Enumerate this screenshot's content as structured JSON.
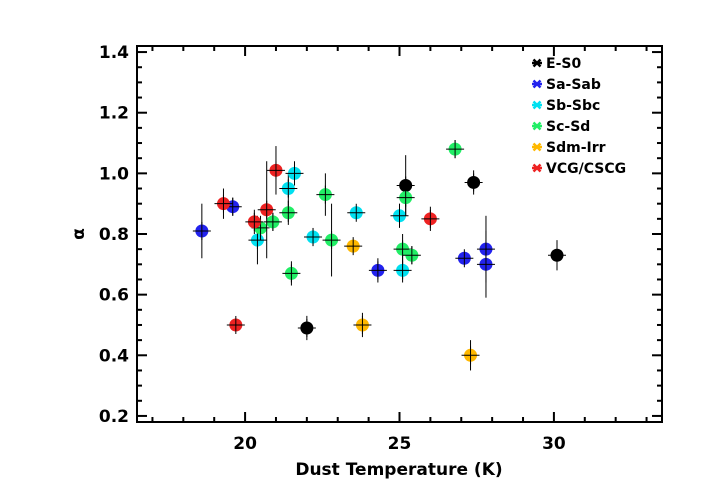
{
  "chart_data": {
    "type": "scatter",
    "title": "",
    "xlabel": "Dust Temperature (K)",
    "ylabel": "α",
    "xlim": [
      16.5,
      33.5
    ],
    "ylim": [
      0.18,
      1.42
    ],
    "xticks": [
      20,
      25,
      30
    ],
    "yticks": [
      0.2,
      0.4,
      0.6,
      0.8,
      1.0,
      1.2,
      1.4
    ],
    "ytick_labels": [
      "0.2",
      "0.4",
      "0.6",
      "0.8",
      "1.0",
      "1.2",
      "1.4"
    ],
    "grid": false,
    "legend_position": "top-right",
    "series": [
      {
        "name": "E-S0",
        "color": "#000000",
        "points": [
          {
            "x": 22.0,
            "y": 0.49,
            "yerr": 0.04
          },
          {
            "x": 25.2,
            "y": 0.96,
            "yerr": 0.1
          },
          {
            "x": 27.4,
            "y": 0.97,
            "yerr": 0.04
          },
          {
            "x": 30.1,
            "y": 0.73,
            "yerr": 0.05
          }
        ]
      },
      {
        "name": "Sa-Sab",
        "color": "#2222ee",
        "points": [
          {
            "x": 18.6,
            "y": 0.81,
            "yerr": 0.09
          },
          {
            "x": 19.6,
            "y": 0.89,
            "yerr": 0.03
          },
          {
            "x": 24.3,
            "y": 0.68,
            "yerr": 0.04
          },
          {
            "x": 27.1,
            "y": 0.72,
            "yerr": 0.02
          },
          {
            "x": 27.8,
            "y": 0.75,
            "yerr": 0.11
          },
          {
            "x": 27.8,
            "y": 0.7,
            "yerr": 0.11
          }
        ]
      },
      {
        "name": "Sb-Sbc",
        "color": "#00e0f0",
        "points": [
          {
            "x": 20.4,
            "y": 0.78,
            "yerr": 0.08
          },
          {
            "x": 21.4,
            "y": 0.95,
            "yerr": 0.05
          },
          {
            "x": 21.6,
            "y": 1.0,
            "yerr": 0.04
          },
          {
            "x": 22.2,
            "y": 0.79,
            "yerr": 0.03
          },
          {
            "x": 23.6,
            "y": 0.87,
            "yerr": 0.02
          },
          {
            "x": 25.0,
            "y": 0.86,
            "yerr": 0.04
          },
          {
            "x": 25.1,
            "y": 0.68,
            "yerr": 0.04
          }
        ]
      },
      {
        "name": "Sc-Sd",
        "color": "#22ee66",
        "points": [
          {
            "x": 20.5,
            "y": 0.82,
            "yerr": 0.04
          },
          {
            "x": 20.9,
            "y": 0.84,
            "yerr": 0.03
          },
          {
            "x": 21.4,
            "y": 0.87,
            "yerr": 0.04
          },
          {
            "x": 21.5,
            "y": 0.67,
            "yerr": 0.04
          },
          {
            "x": 22.6,
            "y": 0.93,
            "yerr": 0.07
          },
          {
            "x": 22.8,
            "y": 0.78,
            "yerr": 0.12
          },
          {
            "x": 25.2,
            "y": 0.92,
            "yerr": 0.06
          },
          {
            "x": 25.1,
            "y": 0.75,
            "yerr": 0.05
          },
          {
            "x": 25.4,
            "y": 0.73,
            "yerr": 0.03
          },
          {
            "x": 26.8,
            "y": 1.08,
            "yerr": 0.03
          }
        ]
      },
      {
        "name": "Sdm-Irr",
        "color": "#ffb800",
        "points": [
          {
            "x": 23.5,
            "y": 0.76,
            "yerr": 0.02
          },
          {
            "x": 23.8,
            "y": 0.5,
            "yerr": 0.04
          },
          {
            "x": 27.3,
            "y": 0.4,
            "yerr": 0.05
          }
        ]
      },
      {
        "name": "VCG/CSCG",
        "color": "#ee2222",
        "points": [
          {
            "x": 19.3,
            "y": 0.9,
            "yerr": 0.05
          },
          {
            "x": 19.7,
            "y": 0.5,
            "yerr": 0.02
          },
          {
            "x": 20.3,
            "y": 0.84,
            "yerr": 0.04
          },
          {
            "x": 20.7,
            "y": 0.88,
            "yerr": 0.16
          },
          {
            "x": 21.0,
            "y": 1.01,
            "yerr": 0.08
          },
          {
            "x": 26.0,
            "y": 0.85,
            "yerr": 0.04
          }
        ]
      }
    ]
  }
}
